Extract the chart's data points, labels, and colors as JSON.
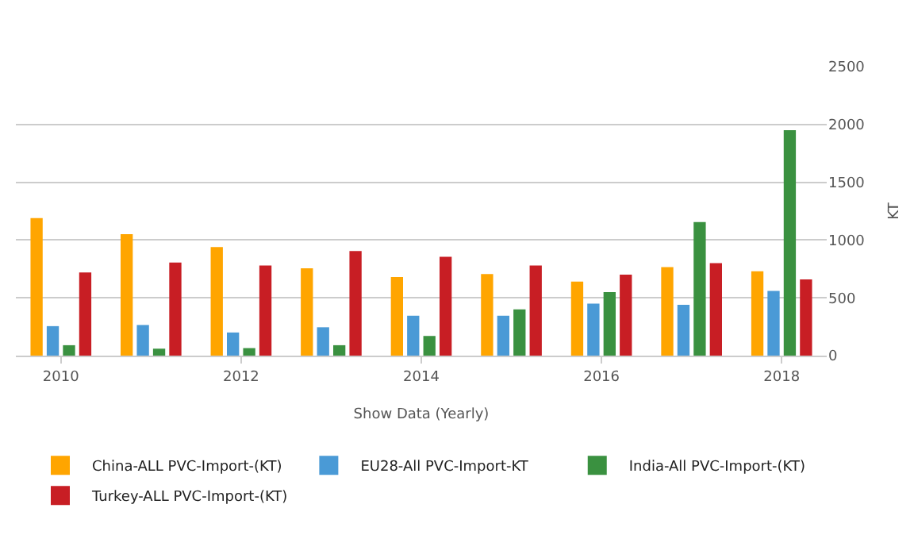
{
  "chart_data": {
    "type": "bar",
    "categories": [
      "2010",
      null,
      "2012",
      null,
      "2014",
      null,
      "2016",
      null,
      "2018"
    ],
    "xlabel": "Show Data (Yearly)",
    "ylabel": "KT",
    "ylim": [
      0,
      2500
    ],
    "yticks": [
      0,
      500,
      1000,
      1500,
      2000,
      2500
    ],
    "grid": "y",
    "legend": "bottom",
    "series": [
      {
        "name": "China-ALL PVC-Import-(KT)",
        "color": "#ffa500",
        "values": [
          1190,
          1050,
          940,
          755,
          680,
          705,
          640,
          765,
          730
        ]
      },
      {
        "name": "EU28-All PVC-Import-KT",
        "color": "#4a9ad6",
        "values": [
          255,
          265,
          200,
          245,
          345,
          345,
          450,
          440,
          560
        ]
      },
      {
        "name": "India-All PVC-Import-(KT)",
        "color": "#3a9140",
        "values": [
          90,
          60,
          65,
          90,
          170,
          400,
          550,
          1155,
          1950
        ]
      },
      {
        "name": "Turkey-ALL PVC-Import-(KT)",
        "color": "#c81e24",
        "values": [
          720,
          805,
          780,
          905,
          855,
          780,
          700,
          800,
          660
        ]
      }
    ]
  }
}
